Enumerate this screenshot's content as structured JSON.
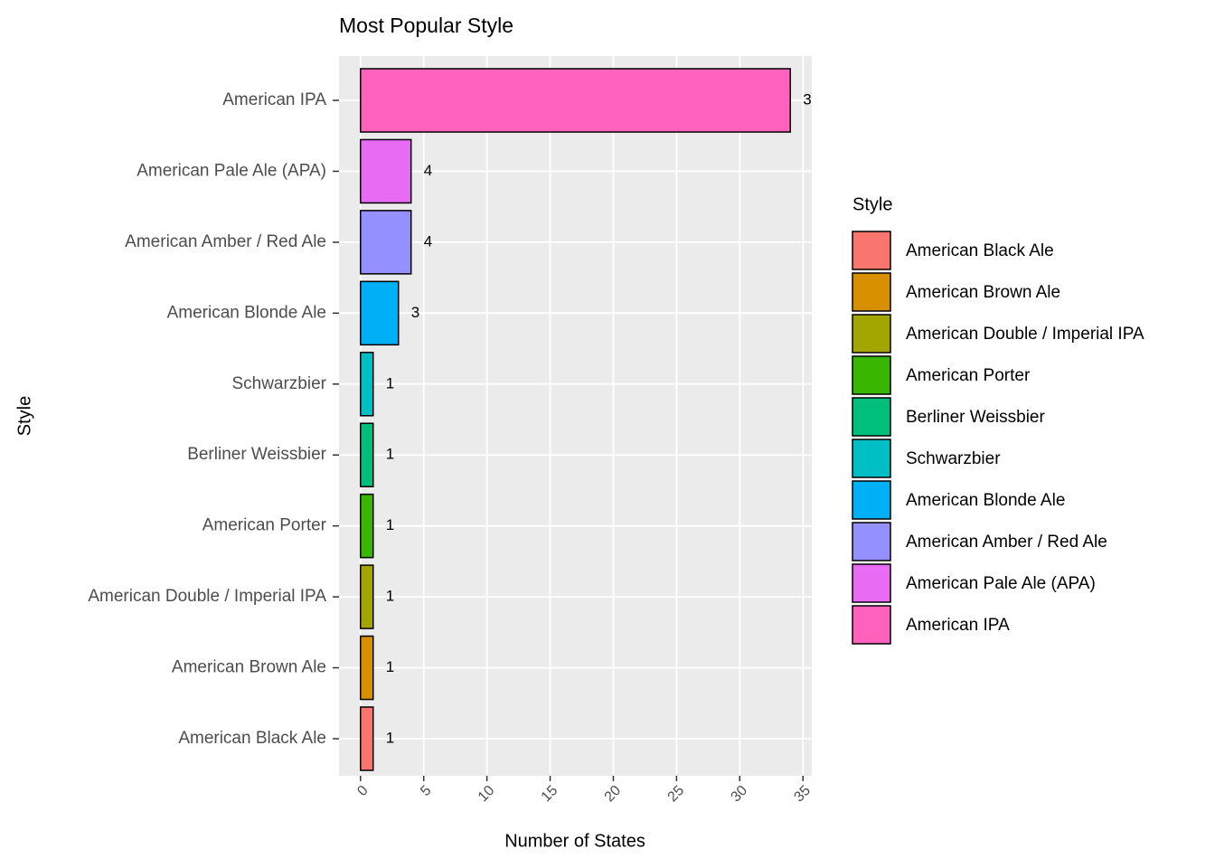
{
  "chart_data": {
    "type": "bar",
    "orientation": "horizontal",
    "title": "Most Popular Style",
    "x_label": "Number of States",
    "y_label": "Style",
    "categories": [
      "American Black Ale",
      "American Brown Ale",
      "American Double / Imperial IPA",
      "American Porter",
      "Berliner Weissbier",
      "Schwarzbier",
      "American Blonde Ale",
      "American Amber / Red Ale",
      "American Pale Ale (APA)",
      "American IPA"
    ],
    "values": [
      1,
      1,
      1,
      1,
      1,
      1,
      3,
      4,
      4,
      34
    ],
    "colors": [
      "#F8766D",
      "#D89000",
      "#A3A500",
      "#39B600",
      "#00BF7D",
      "#00BFC4",
      "#00B0F6",
      "#9590FF",
      "#E76BF3",
      "#FF62BC"
    ],
    "xlim": [
      -1.7,
      35.7
    ],
    "xticks": [
      0,
      5,
      10,
      15,
      20,
      25,
      30,
      35
    ],
    "grid": true,
    "legend": {
      "title": "Style",
      "position": "right"
    }
  }
}
